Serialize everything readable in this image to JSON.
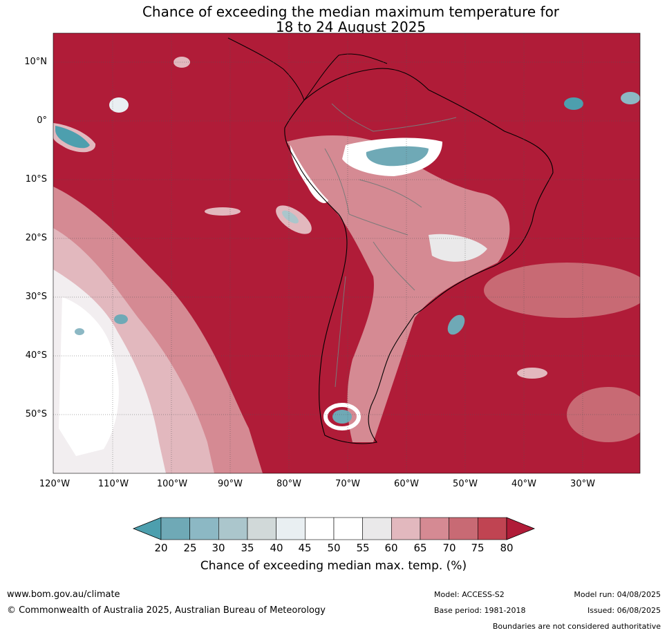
{
  "title_line1": "Chance of exceeding the median maximum temperature for",
  "title_line2": "18 to 24 August 2025",
  "lat_labels": [
    "10°N",
    "0°",
    "10°S",
    "20°S",
    "30°S",
    "40°S",
    "50°S"
  ],
  "lon_labels": [
    "120°W",
    "110°W",
    "100°W",
    "90°W",
    "80°W",
    "70°W",
    "60°W",
    "50°W",
    "40°W",
    "30°W"
  ],
  "colorbar": {
    "ticks": [
      "20",
      "25",
      "30",
      "35",
      "40",
      "45",
      "50",
      "55",
      "60",
      "65",
      "70",
      "75",
      "80"
    ],
    "colors": [
      "#6fa9b6",
      "#8cb8c4",
      "#abc6cc",
      "#d1d9d9",
      "#e9eff2",
      "#ffffff",
      "#ffffff",
      "#eae9ea",
      "#e2b8be",
      "#d58a93",
      "#c86a74",
      "#c04452"
    ],
    "under_color": "#4d9fae",
    "over_color": "#b01c38",
    "label": "Chance of exceeding median max. temp. (%)"
  },
  "map": {
    "background_color": "#b01c38",
    "coastline_color": "#000000",
    "border_color": "#7a7a7a"
  },
  "footer": {
    "site": "www.bom.gov.au/climate",
    "copyright": "© Commonwealth of Australia 2025, Australian Bureau of Meteorology",
    "model": "Model: ACCESS-S2",
    "base_period": "Base period: 1981-2018",
    "model_run": "Model run: 04/08/2025",
    "issued": "Issued: 06/08/2025",
    "disclaimer": "Boundaries are not considered authoritative"
  }
}
